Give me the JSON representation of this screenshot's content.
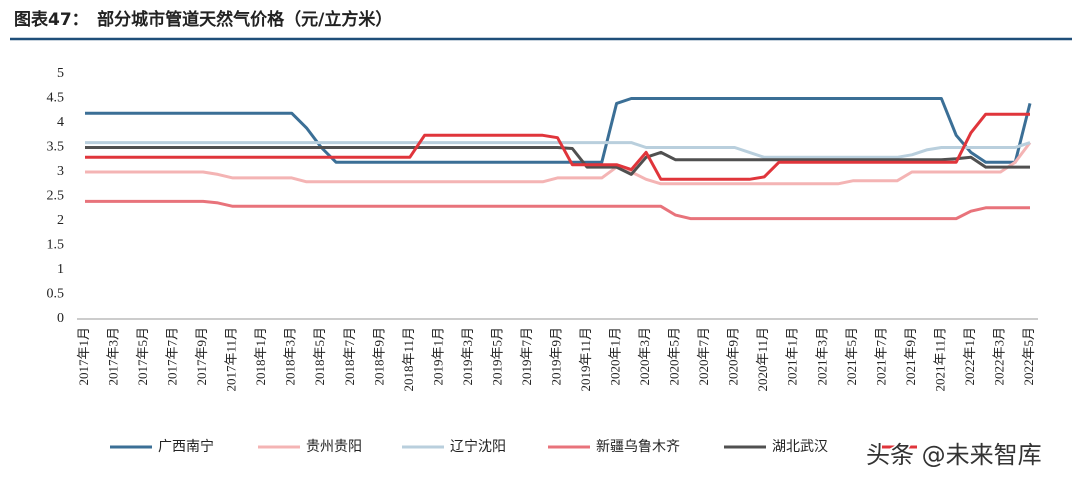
{
  "chart_data": {
    "type": "line",
    "title": "图表47：　部分城市管道天然气价格（元/立方米）",
    "categories": [
      "2017年1月",
      null,
      "2017年3月",
      null,
      "2017年5月",
      null,
      "2017年7月",
      null,
      "2017年9月",
      null,
      "2017年11月",
      null,
      "2018年1月",
      null,
      "2018年3月",
      null,
      "2018年5月",
      null,
      "2018年7月",
      null,
      "2018年9月",
      null,
      "2018年11月",
      null,
      "2019年1月",
      null,
      "2019年3月",
      null,
      "2019年5月",
      null,
      "2019年7月",
      null,
      "2019年9月",
      null,
      "2019年11月",
      null,
      "2020年1月",
      null,
      "2020年3月",
      null,
      "2020年5月",
      null,
      "2020年7月",
      null,
      "2020年9月",
      null,
      "2020年11月",
      null,
      "2021年1月",
      null,
      "2021年3月",
      null,
      "2021年5月",
      null,
      "2021年7月",
      null,
      "2021年9月",
      null,
      "2021年11月",
      null,
      "2022年1月",
      null,
      "2022年3月",
      null,
      "2022年5月"
    ],
    "ylim": [
      0,
      5
    ],
    "yticks": [
      0,
      0.5,
      1,
      1.5,
      2,
      2.5,
      3,
      3.5,
      4,
      4.5,
      5
    ],
    "series": [
      {
        "name": "广西南宁",
        "color": "#3b6f96",
        "values": [
          4.2,
          4.2,
          4.2,
          4.2,
          4.2,
          4.2,
          4.2,
          4.2,
          4.2,
          4.2,
          4.2,
          4.2,
          4.2,
          4.2,
          4.2,
          3.9,
          3.5,
          3.2,
          3.2,
          3.2,
          3.2,
          3.2,
          3.2,
          3.2,
          3.2,
          3.2,
          3.2,
          3.2,
          3.2,
          3.2,
          3.2,
          3.2,
          3.2,
          3.2,
          3.2,
          3.2,
          4.4,
          4.5,
          4.5,
          4.5,
          4.5,
          4.5,
          4.5,
          4.5,
          4.5,
          4.5,
          4.5,
          4.5,
          4.5,
          4.5,
          4.5,
          4.5,
          4.5,
          4.5,
          4.5,
          4.5,
          4.5,
          4.5,
          4.5,
          3.75,
          3.4,
          3.2,
          3.2,
          3.2,
          4.4
        ]
      },
      {
        "name": "贵州贵阳",
        "color": "#f4b4b4",
        "values": [
          3.0,
          3.0,
          3.0,
          3.0,
          3.0,
          3.0,
          3.0,
          3.0,
          3.0,
          2.95,
          2.88,
          2.88,
          2.88,
          2.88,
          2.88,
          2.8,
          2.8,
          2.8,
          2.8,
          2.8,
          2.8,
          2.8,
          2.8,
          2.8,
          2.8,
          2.8,
          2.8,
          2.8,
          2.8,
          2.8,
          2.8,
          2.8,
          2.88,
          2.88,
          2.88,
          2.88,
          3.1,
          3.0,
          2.85,
          2.76,
          2.76,
          2.76,
          2.76,
          2.76,
          2.76,
          2.76,
          2.76,
          2.76,
          2.76,
          2.76,
          2.76,
          2.76,
          2.82,
          2.82,
          2.82,
          2.82,
          3.0,
          3.0,
          3.0,
          3.0,
          3.0,
          3.0,
          3.0,
          3.2,
          3.6
        ]
      },
      {
        "name": "辽宁沈阳",
        "color": "#b9cfdd",
        "values": [
          3.6,
          3.6,
          3.6,
          3.6,
          3.6,
          3.6,
          3.6,
          3.6,
          3.6,
          3.6,
          3.6,
          3.6,
          3.6,
          3.6,
          3.6,
          3.6,
          3.6,
          3.6,
          3.6,
          3.6,
          3.6,
          3.6,
          3.6,
          3.6,
          3.6,
          3.6,
          3.6,
          3.6,
          3.6,
          3.6,
          3.6,
          3.6,
          3.6,
          3.6,
          3.6,
          3.6,
          3.6,
          3.6,
          3.5,
          3.5,
          3.5,
          3.5,
          3.5,
          3.5,
          3.5,
          3.4,
          3.3,
          3.3,
          3.3,
          3.3,
          3.3,
          3.3,
          3.3,
          3.3,
          3.3,
          3.3,
          3.35,
          3.45,
          3.5,
          3.5,
          3.5,
          3.5,
          3.5,
          3.5,
          3.6
        ]
      },
      {
        "name": "新疆乌鲁木齐",
        "color": "#e8737b",
        "values": [
          2.4,
          2.4,
          2.4,
          2.4,
          2.4,
          2.4,
          2.4,
          2.4,
          2.4,
          2.37,
          2.3,
          2.3,
          2.3,
          2.3,
          2.3,
          2.3,
          2.3,
          2.3,
          2.3,
          2.3,
          2.3,
          2.3,
          2.3,
          2.3,
          2.3,
          2.3,
          2.3,
          2.3,
          2.3,
          2.3,
          2.3,
          2.3,
          2.3,
          2.3,
          2.3,
          2.3,
          2.3,
          2.3,
          2.3,
          2.3,
          2.12,
          2.05,
          2.05,
          2.05,
          2.05,
          2.05,
          2.05,
          2.05,
          2.05,
          2.05,
          2.05,
          2.05,
          2.05,
          2.05,
          2.05,
          2.05,
          2.05,
          2.05,
          2.05,
          2.05,
          2.2,
          2.27,
          2.27,
          2.27,
          2.27
        ]
      },
      {
        "name": "湖北武汉",
        "color": "#505050",
        "values": [
          3.5,
          3.5,
          3.5,
          3.5,
          3.5,
          3.5,
          3.5,
          3.5,
          3.5,
          3.5,
          3.5,
          3.5,
          3.5,
          3.5,
          3.5,
          3.5,
          3.5,
          3.5,
          3.5,
          3.5,
          3.5,
          3.5,
          3.5,
          3.5,
          3.5,
          3.5,
          3.5,
          3.5,
          3.5,
          3.5,
          3.5,
          3.5,
          3.5,
          3.48,
          3.1,
          3.1,
          3.1,
          2.95,
          3.3,
          3.4,
          3.25,
          3.25,
          3.25,
          3.25,
          3.25,
          3.25,
          3.25,
          3.25,
          3.25,
          3.25,
          3.25,
          3.25,
          3.25,
          3.25,
          3.25,
          3.25,
          3.25,
          3.25,
          3.25,
          3.27,
          3.3,
          3.1,
          3.1,
          3.1,
          3.1
        ]
      },
      {
        "color": "#e0353b",
        "values": [
          3.3,
          3.3,
          3.3,
          3.3,
          3.3,
          3.3,
          3.3,
          3.3,
          3.3,
          3.3,
          3.3,
          3.3,
          3.3,
          3.3,
          3.3,
          3.3,
          3.3,
          3.3,
          3.3,
          3.3,
          3.3,
          3.3,
          3.3,
          3.75,
          3.75,
          3.75,
          3.75,
          3.75,
          3.75,
          3.75,
          3.75,
          3.75,
          3.7,
          3.15,
          3.15,
          3.15,
          3.15,
          3.05,
          3.4,
          2.85,
          2.85,
          2.85,
          2.85,
          2.85,
          2.85,
          2.85,
          2.9,
          3.2,
          3.2,
          3.2,
          3.2,
          3.2,
          3.2,
          3.2,
          3.2,
          3.2,
          3.2,
          3.2,
          3.2,
          3.2,
          3.8,
          4.18,
          4.18,
          4.18,
          4.18
        ]
      }
    ],
    "watermark": "头条 @未来智库"
  }
}
